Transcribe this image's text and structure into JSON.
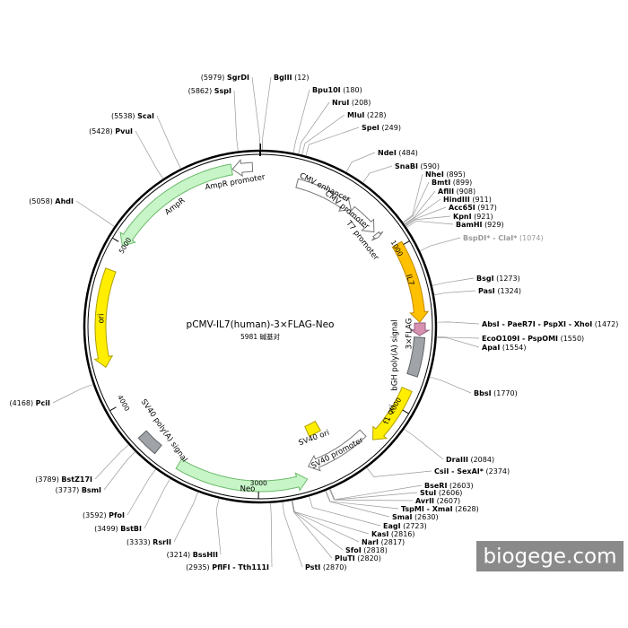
{
  "title": "pCMV-IL7(human)-3×FLAG-Neo",
  "size": "5981 碱基对",
  "watermark": "biogege.com",
  "ticks": [
    1000,
    2000,
    3000,
    4000,
    5000
  ],
  "features": [
    "AmpR promoter",
    "AmpR",
    "ori",
    "CMV enhancer",
    "CMV promoter",
    "T7 promoter",
    "IL7",
    "3×FLAG",
    "bGH poly(A) signal",
    "f1 ori",
    "SV40 promoter",
    "SV40 ori",
    "Neo",
    "SV40 poly(A) signal"
  ],
  "sites": [
    {
      "name": "SgrDI",
      "position": "(5979)"
    },
    {
      "name": "BglII",
      "position": "(12)"
    },
    {
      "name": "SspI",
      "position": "(5862)"
    },
    {
      "name": "Bpu10I",
      "position": "(180)"
    },
    {
      "name": "NruI",
      "position": "(208)"
    },
    {
      "name": "MluI",
      "position": "(228)"
    },
    {
      "name": "SpeI",
      "position": "(249)"
    },
    {
      "name": "NdeI",
      "position": "(484)"
    },
    {
      "name": "SnaBI",
      "position": "(590)"
    },
    {
      "name": "ScaI",
      "position": "(5538)"
    },
    {
      "name": "PvuI",
      "position": "(5428)"
    },
    {
      "name": "AhdI",
      "position": "(5058)"
    },
    {
      "name": "NheI",
      "position": "(895)"
    },
    {
      "name": "BmtI",
      "position": "(899)"
    },
    {
      "name": "AflII",
      "position": "(908)"
    },
    {
      "name": "HindIII",
      "position": "(911)"
    },
    {
      "name": "Acc65I",
      "position": "(917)"
    },
    {
      "name": "KpnI",
      "position": "(921)"
    },
    {
      "name": "BamHI",
      "position": "(929)"
    },
    {
      "name": "BspDI* - ClaI*",
      "position": "(1074)"
    },
    {
      "name": "BsgI",
      "position": "(1273)"
    },
    {
      "name": "PasI",
      "position": "(1324)"
    },
    {
      "name": "AbsI - PaeR7I - PspXI - XhoI",
      "position": "(1472)"
    },
    {
      "name": "EcoO109I - PspOMI",
      "position": "(1550)"
    },
    {
      "name": "ApaI",
      "position": "(1554)"
    },
    {
      "name": "BbsI",
      "position": "(1770)"
    },
    {
      "name": "DraIII",
      "position": "(2084)"
    },
    {
      "name": "CsiI - SexAI*",
      "position": "(2374)"
    },
    {
      "name": "BseRI",
      "position": "(2603)"
    },
    {
      "name": "StuI",
      "position": "(2606)"
    },
    {
      "name": "AvrII",
      "position": "(2607)"
    },
    {
      "name": "TspMI - XmaI",
      "position": "(2628)"
    },
    {
      "name": "SmaI",
      "position": "(2630)"
    },
    {
      "name": "EagI",
      "position": "(2723)"
    },
    {
      "name": "KasI",
      "position": "(2816)"
    },
    {
      "name": "NarI",
      "position": "(2817)"
    },
    {
      "name": "SfoI",
      "position": "(2818)"
    },
    {
      "name": "PluTI",
      "position": "(2820)"
    },
    {
      "name": "PstI",
      "position": "(2870)"
    },
    {
      "name": "PflFI - Tth111I",
      "position": "(2935)"
    },
    {
      "name": "BssHII",
      "position": "(3214)"
    },
    {
      "name": "RsrII",
      "position": "(3333)"
    },
    {
      "name": "BstBI",
      "position": "(3499)"
    },
    {
      "name": "PfoI",
      "position": "(3592)"
    },
    {
      "name": "BsmI",
      "position": "(3737)"
    },
    {
      "name": "BstZ17I",
      "position": "(3789)"
    },
    {
      "name": "PciI",
      "position": "(4168)"
    }
  ]
}
